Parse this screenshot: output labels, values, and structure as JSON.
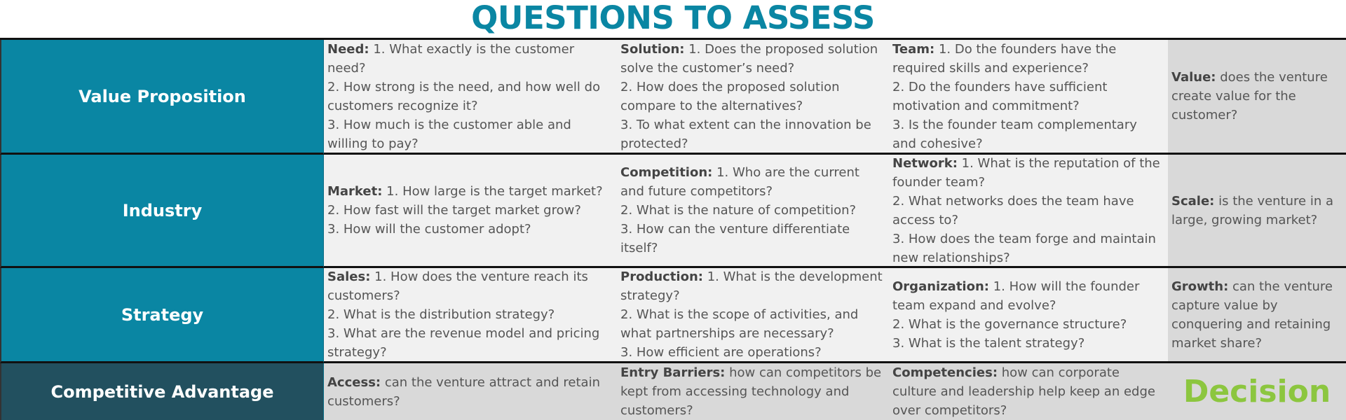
{
  "title": "QUESTIONS TO ASSESS",
  "rows": [
    {
      "label": "Value Proposition",
      "cells": [
        {
          "heading": "Need:",
          "lines": [
            "1. What exactly is the customer need?",
            "2. How strong is the need, and how well do customers recognize it?",
            "3. How much is the customer able and willing to pay?"
          ]
        },
        {
          "heading": "Solution:",
          "lines": [
            "1. Does the proposed solution solve the customer’s need?",
            "2. How does the proposed solution compare to the alternatives?",
            "3. To what extent can the innovation be protected?"
          ]
        },
        {
          "heading": "Team:",
          "lines": [
            "1. Do the founders have the required skills and experience?",
            "2. Do the founders have sufficient motivation and commitment?",
            "3. Is the founder team complementary and cohesive?"
          ]
        }
      ],
      "summary": {
        "heading": "Value:",
        "text": "does the venture create value for the customer?"
      }
    },
    {
      "label": "Industry",
      "cells": [
        {
          "heading": "Market:",
          "lines": [
            "1. How large is the target market?",
            "2. How fast will the target market grow?",
            "3. How will the customer adopt?"
          ]
        },
        {
          "heading": "Competition:",
          "lines": [
            "1. Who are the current and future competitors?",
            "2. What is the nature of competition?",
            "3. How can the venture differentiate itself?"
          ]
        },
        {
          "heading": "Network:",
          "lines": [
            "1. What is the reputation of the founder team?",
            "2. What networks does the team have access to?",
            "3. How does the team forge and maintain new relationships?"
          ]
        }
      ],
      "summary": {
        "heading": "Scale:",
        "text": "is the venture in a large, growing market?"
      }
    },
    {
      "label": "Strategy",
      "cells": [
        {
          "heading": "Sales:",
          "lines": [
            "1. How does the venture reach its customers?",
            "2. What is the distribution strategy?",
            "3. What are the revenue model and pricing strategy?"
          ]
        },
        {
          "heading": "Production:",
          "lines": [
            "1. What is the development strategy?",
            "2. What is the scope of activities, and what partnerships are necessary?",
            "3. How efficient are operations?"
          ]
        },
        {
          "heading": "Organization:",
          "lines": [
            "1. How will the founder team expand and evolve?",
            "2. What is the governance structure?",
            "3. What is the talent strategy?"
          ]
        }
      ],
      "summary": {
        "heading": "Growth:",
        "text": "can the venture capture value by conquering and retaining market share?"
      }
    },
    {
      "label": "Competitive Advantage",
      "cells": [
        {
          "heading": "Access:",
          "lines": [
            "can the venture attract and retain customers?"
          ]
        },
        {
          "heading": "Entry Barriers:",
          "lines": [
            "how can competitors be kept from accessing technology and customers?"
          ]
        },
        {
          "heading": "Competencies:",
          "lines": [
            "how can corporate culture and leadership help keep an edge over competitors?"
          ]
        }
      ],
      "summary": {
        "decision": "Decision"
      }
    }
  ],
  "colors": {
    "title": "#0a86a3",
    "row_label": "#0a86a3",
    "row_label_dark": "#22505f",
    "cell": "#f1f1f1",
    "summary": "#d9d9d9",
    "decision": "#8cc63f"
  }
}
